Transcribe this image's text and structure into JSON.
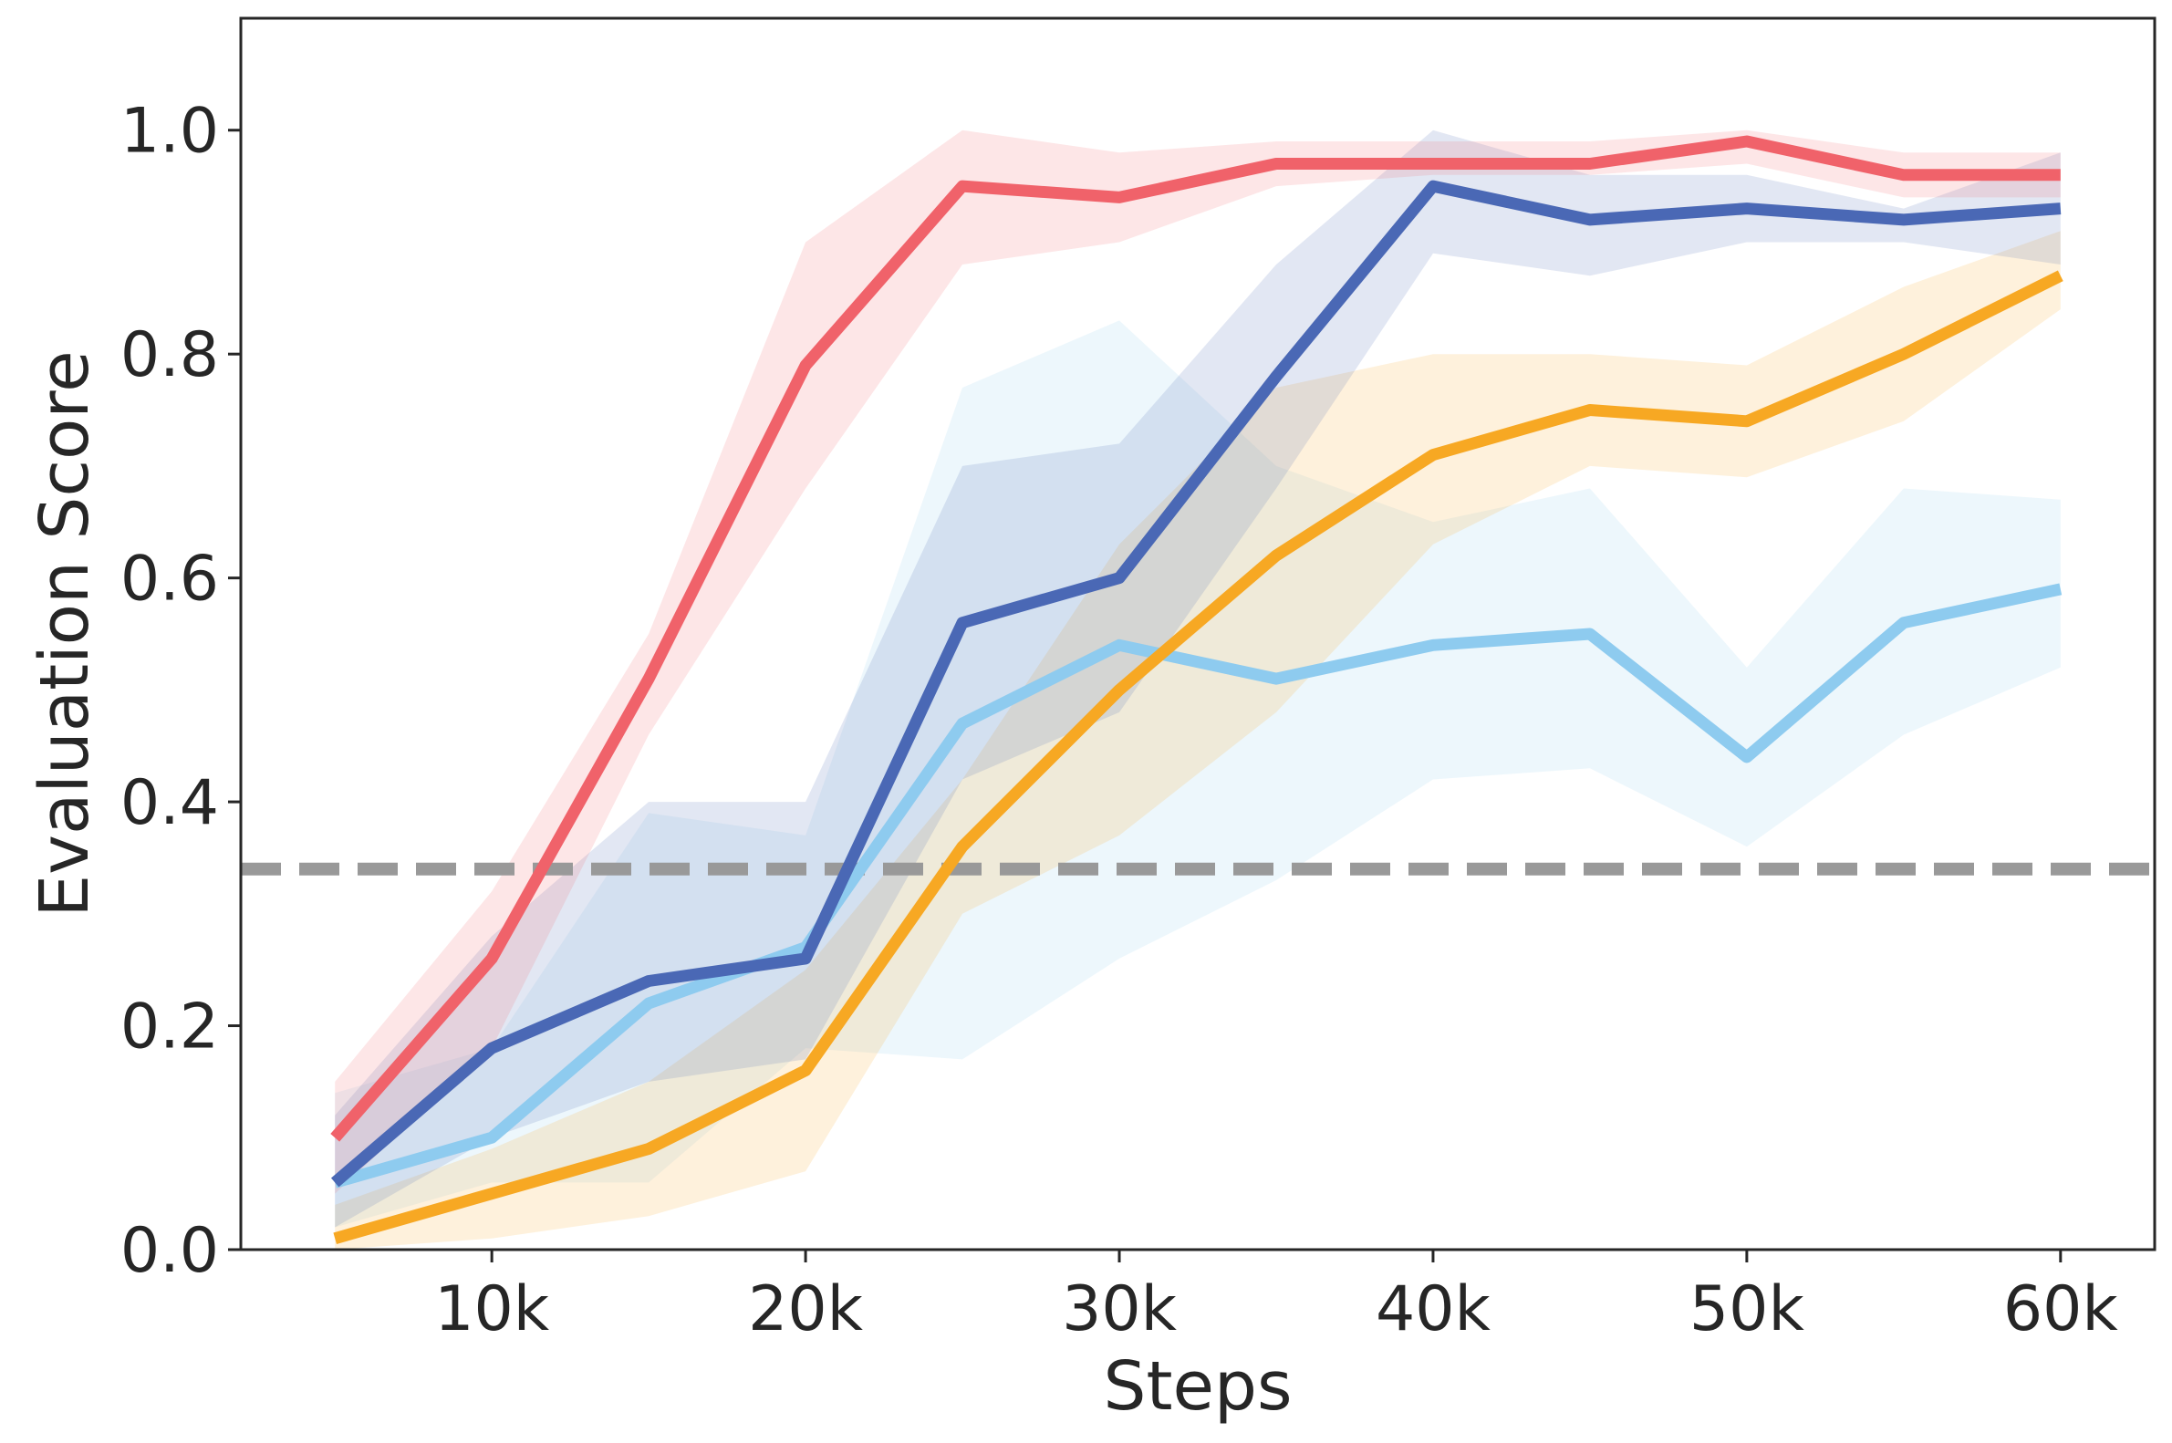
{
  "chart_data": {
    "type": "line",
    "xlabel": "Steps",
    "ylabel": "Evaluation Score",
    "xlim": [
      2000,
      63000
    ],
    "ylim": [
      0,
      1.1
    ],
    "x_ticks": [
      10000,
      20000,
      30000,
      40000,
      50000,
      60000
    ],
    "x_tick_labels": [
      "10k",
      "20k",
      "30k",
      "40k",
      "50k",
      "60k"
    ],
    "y_ticks": [
      0.0,
      0.2,
      0.4,
      0.6,
      0.8,
      1.0
    ],
    "y_tick_labels": [
      "0.0",
      "0.2",
      "0.4",
      "0.6",
      "0.8",
      "1.0"
    ],
    "grid": false,
    "legend": "none",
    "x": [
      5000,
      10000,
      15000,
      20000,
      25000,
      30000,
      35000,
      40000,
      45000,
      50000,
      55000,
      60000
    ],
    "baseline": {
      "y": 0.34,
      "color": "#999999",
      "style": "dashed"
    },
    "series": [
      {
        "color": "#8ecbef",
        "values": [
          0.06,
          0.1,
          0.22,
          0.27,
          0.47,
          0.54,
          0.51,
          0.54,
          0.55,
          0.44,
          0.56,
          0.59
        ],
        "lower": [
          0.02,
          0.06,
          0.06,
          0.18,
          0.17,
          0.26,
          0.33,
          0.42,
          0.43,
          0.36,
          0.46,
          0.52
        ],
        "upper": [
          0.14,
          0.18,
          0.39,
          0.37,
          0.77,
          0.83,
          0.7,
          0.65,
          0.68,
          0.52,
          0.68,
          0.67
        ]
      },
      {
        "color": "#f7a823",
        "values": [
          0.01,
          0.05,
          0.09,
          0.16,
          0.36,
          0.5,
          0.62,
          0.71,
          0.75,
          0.74,
          0.8,
          0.87
        ],
        "lower": [
          0.0,
          0.01,
          0.03,
          0.07,
          0.3,
          0.37,
          0.48,
          0.63,
          0.7,
          0.69,
          0.74,
          0.84
        ],
        "upper": [
          0.04,
          0.09,
          0.15,
          0.25,
          0.42,
          0.63,
          0.77,
          0.8,
          0.8,
          0.79,
          0.86,
          0.91
        ]
      },
      {
        "color": "#4a68b5",
        "values": [
          0.06,
          0.18,
          0.24,
          0.26,
          0.56,
          0.6,
          0.78,
          0.95,
          0.92,
          0.93,
          0.92,
          0.93
        ],
        "lower": [
          0.02,
          0.1,
          0.15,
          0.17,
          0.42,
          0.48,
          0.68,
          0.89,
          0.87,
          0.9,
          0.9,
          0.88
        ],
        "upper": [
          0.12,
          0.28,
          0.4,
          0.4,
          0.7,
          0.72,
          0.88,
          1.0,
          0.96,
          0.96,
          0.93,
          0.98
        ]
      },
      {
        "color": "#f0626a",
        "values": [
          0.1,
          0.26,
          0.51,
          0.79,
          0.95,
          0.94,
          0.97,
          0.97,
          0.97,
          0.99,
          0.96,
          0.96
        ],
        "lower": [
          0.05,
          0.18,
          0.46,
          0.68,
          0.88,
          0.9,
          0.95,
          0.96,
          0.96,
          0.97,
          0.94,
          0.94
        ],
        "upper": [
          0.15,
          0.32,
          0.55,
          0.9,
          1.0,
          0.98,
          0.99,
          0.99,
          0.99,
          1.0,
          0.98,
          0.98
        ]
      }
    ]
  }
}
